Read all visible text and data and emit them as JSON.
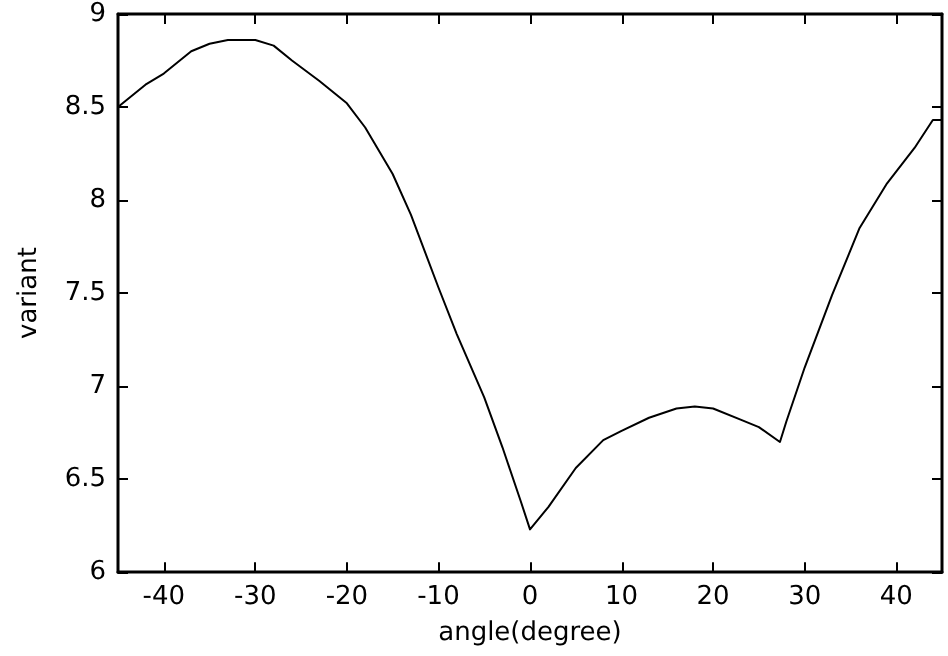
{
  "chart_data": {
    "type": "line",
    "xlabel": "angle(degree)",
    "ylabel": "variant",
    "x": [
      -45,
      -42,
      -40,
      -37,
      -35,
      -33,
      -30,
      -28,
      -26,
      -23,
      -20,
      -18,
      -15,
      -13,
      -10,
      -8,
      -5,
      -3,
      -1,
      0,
      2,
      5,
      8,
      10,
      13,
      16,
      18,
      20,
      23,
      25,
      27.3,
      28,
      30,
      33,
      36,
      39,
      42,
      44,
      45
    ],
    "series": [
      {
        "color": "#000000",
        "values": [
          8.5,
          8.62,
          8.68,
          8.8,
          8.84,
          8.86,
          8.86,
          8.83,
          8.75,
          8.64,
          8.52,
          8.39,
          8.14,
          7.92,
          7.53,
          7.28,
          6.94,
          6.67,
          6.38,
          6.23,
          6.35,
          6.56,
          6.71,
          6.76,
          6.83,
          6.88,
          6.89,
          6.88,
          6.82,
          6.78,
          6.7,
          6.81,
          7.1,
          7.49,
          7.85,
          8.09,
          8.28,
          8.43,
          8.43
        ]
      }
    ],
    "xlim": [
      -45,
      45
    ],
    "xticks": [
      -40,
      -30,
      -20,
      -10,
      0,
      10,
      20,
      30,
      40
    ],
    "ylim": [
      6,
      9
    ],
    "yticks": [
      6,
      6.5,
      7,
      7.5,
      8,
      8.5,
      9
    ],
    "marker": "none",
    "line_style": "solid"
  }
}
